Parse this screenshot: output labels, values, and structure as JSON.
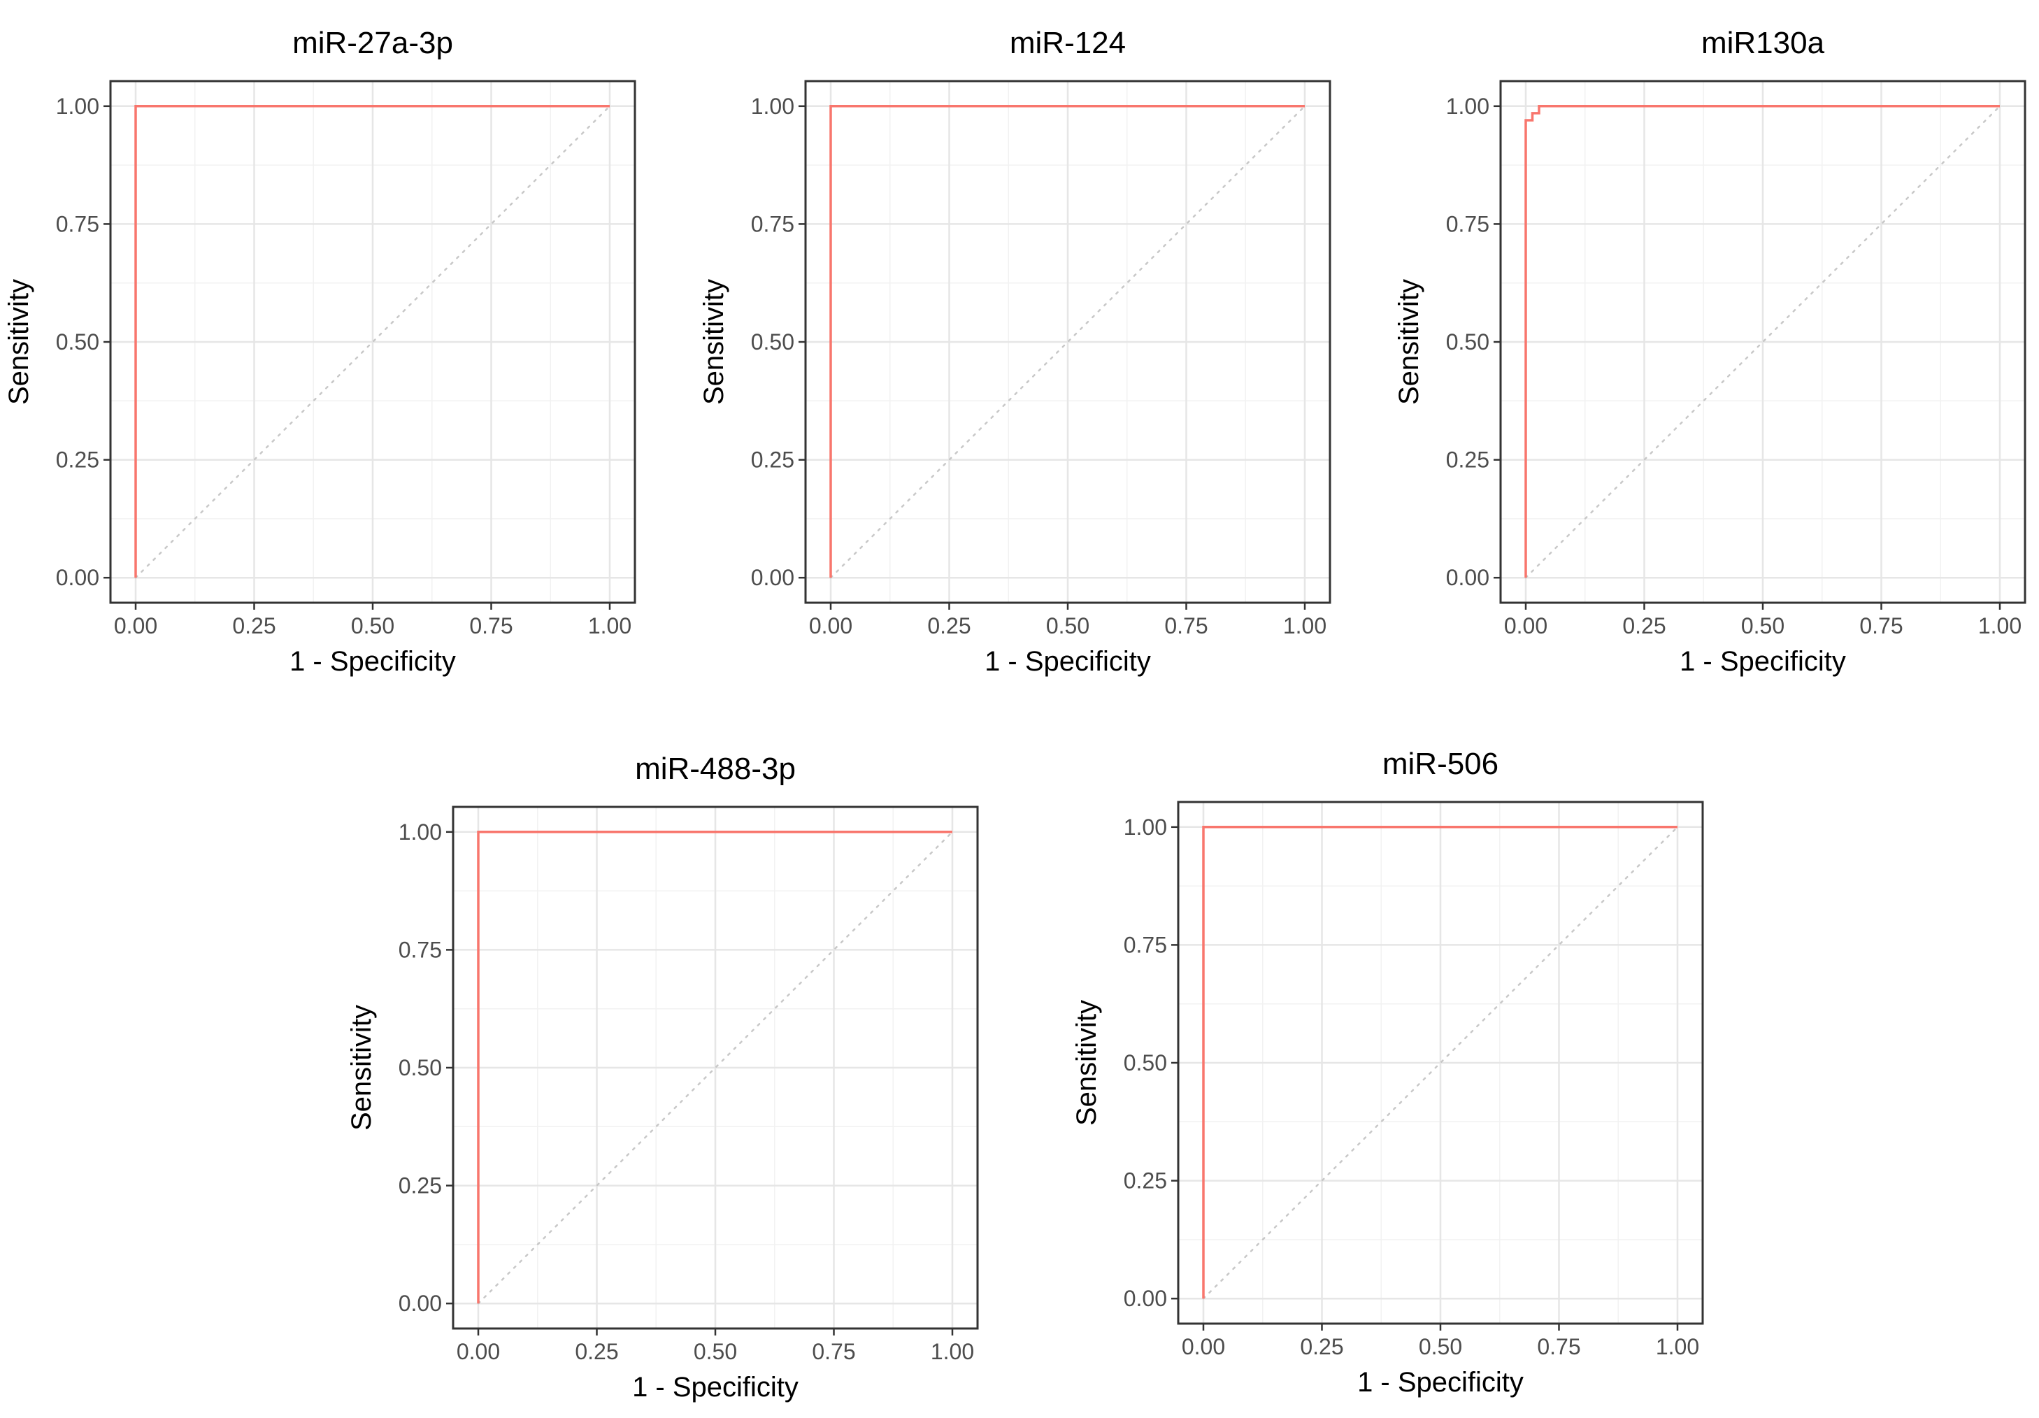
{
  "colors": {
    "roc_line": "#f8766d",
    "diagonal": "#c8c8c8",
    "grid_major": "#e6e6e6",
    "grid_minor": "#f2f2f2",
    "panel_border": "#333333",
    "tick_label": "#4d4d4d"
  },
  "chart_data": [
    {
      "type": "line",
      "title": "miR-27a-3p",
      "xlabel": "1 - Specificity",
      "ylabel": "Sensitivity",
      "xlim": [
        0,
        1
      ],
      "ylim": [
        0,
        1
      ],
      "x_ticks": [
        "0.00",
        "0.25",
        "0.50",
        "0.75",
        "1.00"
      ],
      "y_ticks": [
        "0.00",
        "0.25",
        "0.50",
        "0.75",
        "1.00"
      ],
      "grid": true,
      "reference_line": {
        "x": [
          0,
          1
        ],
        "y": [
          0,
          1
        ],
        "style": "dotted"
      },
      "series": [
        {
          "x": [
            0,
            0,
            1
          ],
          "y": [
            0,
            1,
            1
          ]
        }
      ]
    },
    {
      "type": "line",
      "title": "miR-124",
      "xlabel": "1 - Specificity",
      "ylabel": "Sensitivity",
      "xlim": [
        0,
        1
      ],
      "ylim": [
        0,
        1
      ],
      "x_ticks": [
        "0.00",
        "0.25",
        "0.50",
        "0.75",
        "1.00"
      ],
      "y_ticks": [
        "0.00",
        "0.25",
        "0.50",
        "0.75",
        "1.00"
      ],
      "grid": true,
      "reference_line": {
        "x": [
          0,
          1
        ],
        "y": [
          0,
          1
        ],
        "style": "dotted"
      },
      "series": [
        {
          "x": [
            0,
            0,
            1
          ],
          "y": [
            0,
            1,
            1
          ]
        }
      ]
    },
    {
      "type": "line",
      "title": "miR130a",
      "xlabel": "1 - Specificity",
      "ylabel": "Sensitivity",
      "xlim": [
        0,
        1
      ],
      "ylim": [
        0,
        1
      ],
      "x_ticks": [
        "0.00",
        "0.25",
        "0.50",
        "0.75",
        "1.00"
      ],
      "y_ticks": [
        "0.00",
        "0.25",
        "0.50",
        "0.75",
        "1.00"
      ],
      "grid": true,
      "reference_line": {
        "x": [
          0,
          1
        ],
        "y": [
          0,
          1
        ],
        "style": "dotted"
      },
      "series": [
        {
          "x": [
            0,
            0,
            0.014,
            0.014,
            0.028,
            0.028,
            1
          ],
          "y": [
            0,
            0.97,
            0.97,
            0.985,
            0.985,
            1,
            1
          ]
        }
      ]
    },
    {
      "type": "line",
      "title": "miR-488-3p",
      "xlabel": "1 - Specificity",
      "ylabel": "Sensitivity",
      "xlim": [
        0,
        1
      ],
      "ylim": [
        0,
        1
      ],
      "x_ticks": [
        "0.00",
        "0.25",
        "0.50",
        "0.75",
        "1.00"
      ],
      "y_ticks": [
        "0.00",
        "0.25",
        "0.50",
        "0.75",
        "1.00"
      ],
      "grid": true,
      "reference_line": {
        "x": [
          0,
          1
        ],
        "y": [
          0,
          1
        ],
        "style": "dotted"
      },
      "series": [
        {
          "x": [
            0,
            0,
            1
          ],
          "y": [
            0,
            1,
            1
          ]
        }
      ]
    },
    {
      "type": "line",
      "title": "miR-506",
      "xlabel": "1 - Specificity",
      "ylabel": "Sensitivity",
      "xlim": [
        0,
        1
      ],
      "ylim": [
        0,
        1
      ],
      "x_ticks": [
        "0.00",
        "0.25",
        "0.50",
        "0.75",
        "1.00"
      ],
      "y_ticks": [
        "0.00",
        "0.25",
        "0.50",
        "0.75",
        "1.00"
      ],
      "grid": true,
      "reference_line": {
        "x": [
          0,
          1
        ],
        "y": [
          0,
          1
        ],
        "style": "dotted"
      },
      "series": [
        {
          "x": [
            0,
            0,
            1
          ],
          "y": [
            0,
            1,
            1
          ]
        }
      ]
    }
  ]
}
